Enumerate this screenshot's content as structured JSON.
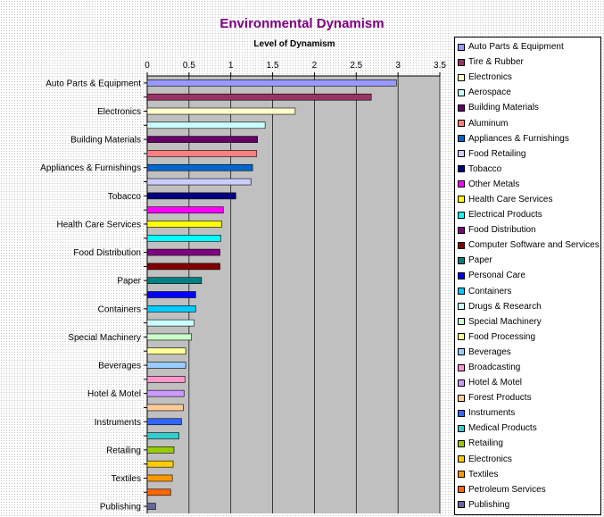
{
  "chart_data": {
    "type": "bar",
    "orientation": "horizontal",
    "title": "Environmental Dynamism",
    "xlabel": "Level of Dynamism",
    "xlim": [
      0,
      3.5
    ],
    "x_ticks": [
      "0",
      "0.5",
      "1",
      "1.5",
      "2",
      "2.5",
      "3",
      "3.5"
    ],
    "grid": true,
    "legend_position": "right",
    "categories": [
      {
        "name": "Auto Parts & Equipment",
        "value": 2.98,
        "color": "#9999ff",
        "show_label": true
      },
      {
        "name": "Tire & Rubber",
        "value": 2.68,
        "color": "#993366",
        "show_label": false
      },
      {
        "name": "Electronics",
        "value": 1.77,
        "color": "#ffffcc",
        "show_label": true
      },
      {
        "name": "Aerospace",
        "value": 1.41,
        "color": "#ccffff",
        "show_label": false
      },
      {
        "name": "Building Materials",
        "value": 1.32,
        "color": "#660066",
        "show_label": true
      },
      {
        "name": "Aluminum",
        "value": 1.31,
        "color": "#ff8080",
        "show_label": false
      },
      {
        "name": "Appliances & Furnishings",
        "value": 1.26,
        "color": "#0066cc",
        "show_label": true
      },
      {
        "name": "Food Retailing",
        "value": 1.24,
        "color": "#ccccff",
        "show_label": false
      },
      {
        "name": "Tobacco",
        "value": 1.06,
        "color": "#000080",
        "show_label": true
      },
      {
        "name": "Other Metals",
        "value": 0.91,
        "color": "#ff00ff",
        "show_label": false
      },
      {
        "name": "Health Care Services",
        "value": 0.89,
        "color": "#ffff00",
        "show_label": true
      },
      {
        "name": "Electrical Products",
        "value": 0.88,
        "color": "#00ffff",
        "show_label": false
      },
      {
        "name": "Food Distribution",
        "value": 0.87,
        "color": "#800080",
        "show_label": true
      },
      {
        "name": "Computer Software and Services",
        "value": 0.87,
        "color": "#800000",
        "show_label": false
      },
      {
        "name": "Paper",
        "value": 0.65,
        "color": "#008080",
        "show_label": true
      },
      {
        "name": "Personal Care",
        "value": 0.58,
        "color": "#0000ff",
        "show_label": false
      },
      {
        "name": "Containers",
        "value": 0.58,
        "color": "#00ccff",
        "show_label": true
      },
      {
        "name": "Drugs & Research",
        "value": 0.56,
        "color": "#ccffff",
        "show_label": false
      },
      {
        "name": "Special Machinery",
        "value": 0.53,
        "color": "#ccffcc",
        "show_label": true
      },
      {
        "name": "Food Processing",
        "value": 0.46,
        "color": "#ffff99",
        "show_label": false
      },
      {
        "name": "Beverages",
        "value": 0.46,
        "color": "#99ccff",
        "show_label": true
      },
      {
        "name": "Broadcasting",
        "value": 0.45,
        "color": "#ff99cc",
        "show_label": false
      },
      {
        "name": "Hotel & Motel",
        "value": 0.44,
        "color": "#cc99ff",
        "show_label": true
      },
      {
        "name": "Forest Products",
        "value": 0.43,
        "color": "#ffcc99",
        "show_label": false
      },
      {
        "name": "Instruments",
        "value": 0.41,
        "color": "#3366ff",
        "show_label": true
      },
      {
        "name": "Medical Products",
        "value": 0.38,
        "color": "#33cccc",
        "show_label": false
      },
      {
        "name": "Retailing",
        "value": 0.32,
        "color": "#99cc00",
        "show_label": true
      },
      {
        "name": "Electronics",
        "value": 0.31,
        "color": "#ffcc00",
        "show_label": false
      },
      {
        "name": "Textiles",
        "value": 0.3,
        "color": "#ff9900",
        "show_label": true
      },
      {
        "name": "Petroleum Services",
        "value": 0.28,
        "color": "#ff6600",
        "show_label": false
      },
      {
        "name": "Publishing",
        "value": 0.1,
        "color": "#666699",
        "show_label": true
      }
    ]
  }
}
